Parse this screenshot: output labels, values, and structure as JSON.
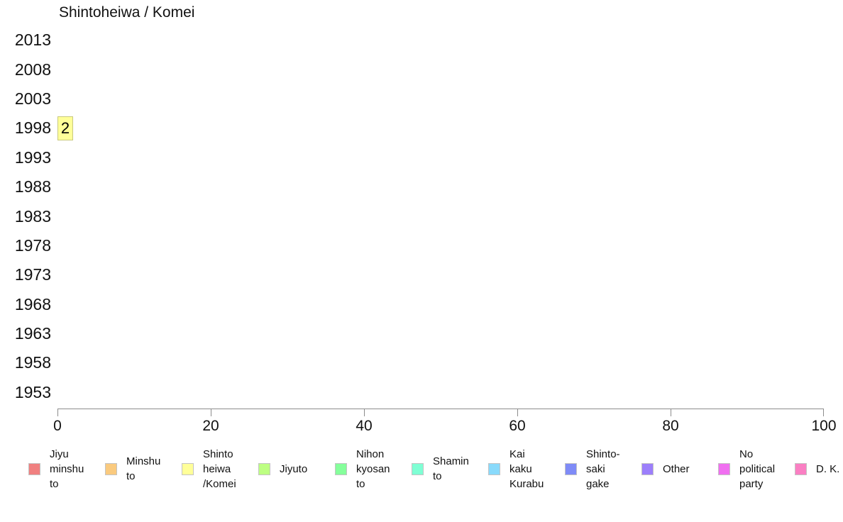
{
  "chart_data": {
    "type": "bar",
    "orientation": "horizontal",
    "title": "Shintoheiwa / Komei",
    "categories": [
      "2013",
      "2008",
      "2003",
      "1998",
      "1993",
      "1988",
      "1983",
      "1978",
      "1973",
      "1968",
      "1963",
      "1958",
      "1953"
    ],
    "values": [
      0,
      0,
      0,
      2,
      0,
      0,
      0,
      0,
      0,
      0,
      0,
      0,
      0
    ],
    "bar_labels": [
      "",
      "",
      "",
      "2",
      "",
      "",
      "",
      "",
      "",
      "",
      "",
      "",
      ""
    ],
    "xlabel": "",
    "ylabel": "",
    "xlim": [
      0,
      100
    ],
    "x_ticks": [
      0,
      20,
      40,
      60,
      80,
      100
    ],
    "grid": "off",
    "bar_color": "#FFFF99",
    "bar_border_color": "#C9C97E",
    "axis_color": "#8c8c8c",
    "legend_position": "bottom",
    "legend": [
      {
        "label": "Jiyu minshu to",
        "lines": [
          "Jiyu",
          "minshu",
          "to"
        ],
        "color": "#F08080"
      },
      {
        "label": "Minshu to",
        "lines": [
          "Minshu",
          "to"
        ],
        "color": "#FACA7E"
      },
      {
        "label": "Shinto heiwa /Komei",
        "lines": [
          "Shinto",
          "heiwa",
          "/Komei"
        ],
        "color": "#FFFF99"
      },
      {
        "label": "Jiyuto",
        "lines": [
          "Jiyuto"
        ],
        "color": "#BDFF82"
      },
      {
        "label": "Nihon kyosan to",
        "lines": [
          "Nihon",
          "kyosan",
          "to"
        ],
        "color": "#85FF9B"
      },
      {
        "label": "Shamin to",
        "lines": [
          "Shamin",
          "to"
        ],
        "color": "#7FFFD4"
      },
      {
        "label": "Kai kaku Kurabu",
        "lines": [
          "Kai",
          "kaku",
          "Kurabu"
        ],
        "color": "#89DAFB"
      },
      {
        "label": "Shinto-saki gake",
        "lines": [
          "Shinto-",
          "saki",
          "gake"
        ],
        "color": "#7F8BF7"
      },
      {
        "label": "Other",
        "lines": [
          "Other"
        ],
        "color": "#9C7FFB"
      },
      {
        "label": "No political party",
        "lines": [
          "No",
          "political",
          "party"
        ],
        "color": "#F06FF0"
      },
      {
        "label": "D. K.",
        "lines": [
          "D. K."
        ],
        "color": "#FA7FC3"
      }
    ]
  }
}
